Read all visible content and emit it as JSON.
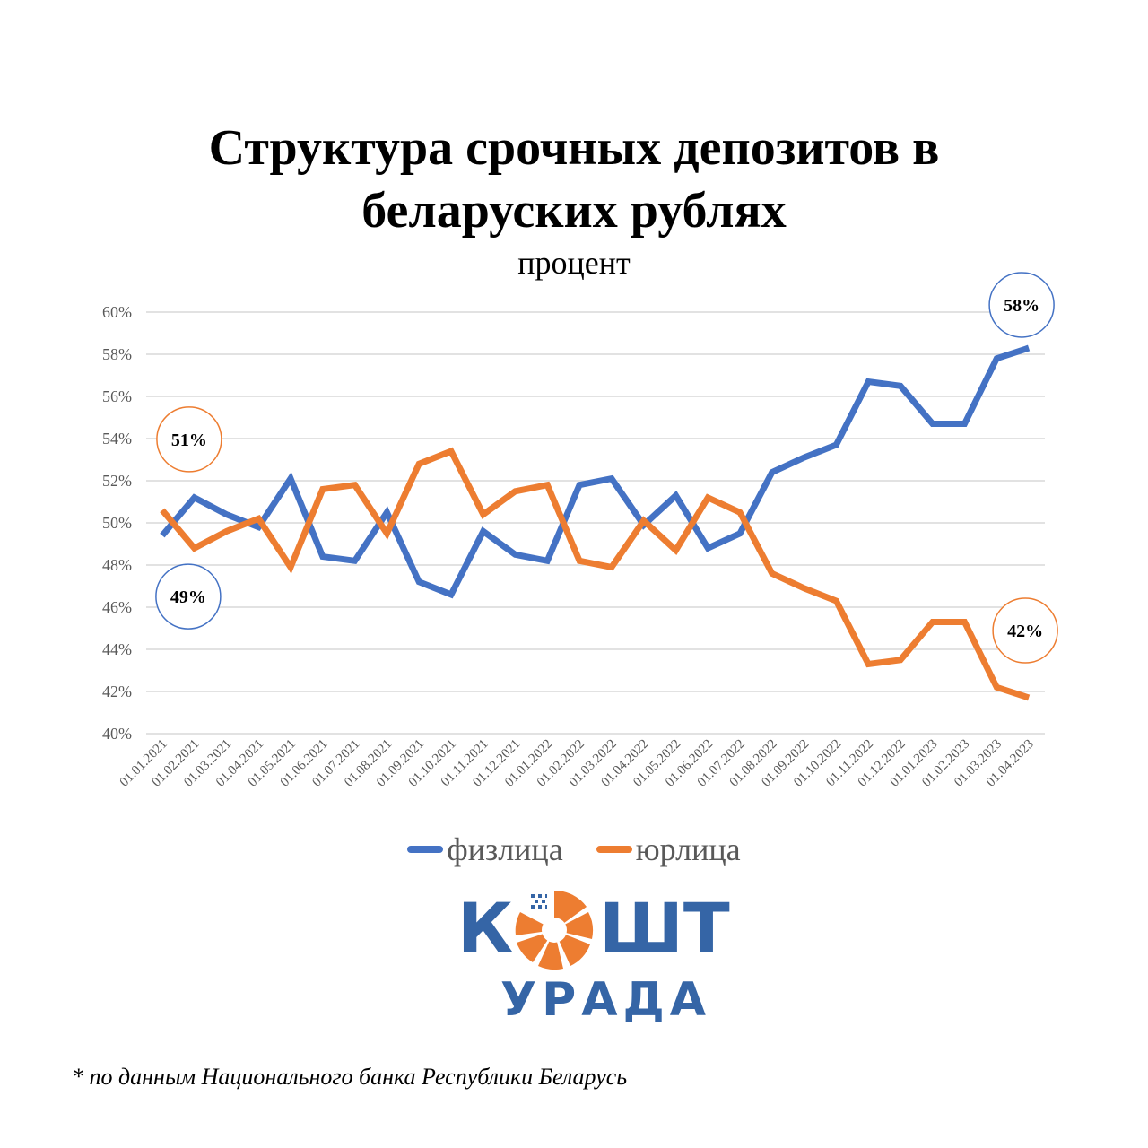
{
  "title_line1": "Структура срочных депозитов в",
  "title_line2": "беларуских рублях",
  "subtitle": "процент",
  "colors": {
    "fiz": "#4472c4",
    "yur": "#ed7d31",
    "logo_blue": "#3565a6",
    "logo_orange": "#ed7d31"
  },
  "chart_data": {
    "type": "line",
    "ylim": [
      40,
      60
    ],
    "y_ticks": [
      "40%",
      "42%",
      "44%",
      "46%",
      "48%",
      "50%",
      "52%",
      "54%",
      "56%",
      "58%",
      "60%"
    ],
    "grid": true,
    "legend_position": "bottom",
    "categories": [
      "01.01.2021",
      "01.02.2021",
      "01.03.2021",
      "01.04.2021",
      "01.05.2021",
      "01.06.2021",
      "01.07.2021",
      "01.08.2021",
      "01.09.2021",
      "01.10.2021",
      "01.11.2021",
      "01.12.2021",
      "01.01.2022",
      "01.02.2022",
      "01.03.2022",
      "01.04.2022",
      "01.05.2022",
      "01.06.2022",
      "01.07.2022",
      "01.08.2022",
      "01.09.2022",
      "01.10.2022",
      "01.11.2022",
      "01.12.2022",
      "01.01.2023",
      "01.02.2023",
      "01.03.2023",
      "01.04.2023"
    ],
    "series": [
      {
        "name": "физлица",
        "color": "#4472c4",
        "values": [
          49.4,
          51.2,
          50.4,
          49.8,
          52.1,
          48.4,
          48.2,
          50.5,
          47.2,
          46.6,
          49.6,
          48.5,
          48.2,
          51.8,
          52.1,
          49.9,
          51.3,
          48.8,
          49.5,
          52.4,
          53.1,
          53.7,
          56.7,
          56.5,
          54.7,
          54.7,
          57.8,
          58.3
        ]
      },
      {
        "name": "юрлица",
        "color": "#ed7d31",
        "values": [
          50.6,
          48.8,
          49.6,
          50.2,
          47.9,
          51.6,
          51.8,
          49.5,
          52.8,
          53.4,
          50.4,
          51.5,
          51.8,
          48.2,
          47.9,
          50.1,
          48.7,
          51.2,
          50.5,
          47.6,
          46.9,
          46.3,
          43.3,
          43.5,
          45.3,
          45.3,
          42.2,
          41.7
        ]
      }
    ],
    "annotations": [
      {
        "text": "51%",
        "series": "юрлица",
        "index": 0
      },
      {
        "text": "49%",
        "series": "физлица",
        "index": 0
      },
      {
        "text": "58%",
        "series": "физлица",
        "index": 27
      },
      {
        "text": "42%",
        "series": "юрлица",
        "index": 27
      }
    ]
  },
  "legend": [
    {
      "label": "физлица",
      "color": "#4472c4"
    },
    {
      "label": "юрлица",
      "color": "#ed7d31"
    }
  ],
  "logo": {
    "word_left": "К",
    "word_right": "ШТ",
    "sub": "УРАДА"
  },
  "footnote": "* по данным Национального банка Республики Беларусь"
}
